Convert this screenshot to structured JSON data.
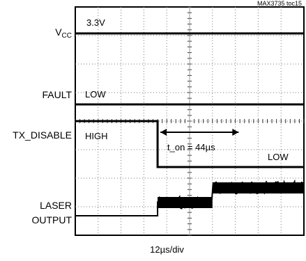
{
  "chart_data": {
    "type": "line",
    "figure_id": "MAX3735 toc15",
    "xlabel": "12µs/div",
    "grid": true,
    "traces": [
      {
        "label": "V",
        "label_sub": "CC",
        "level_text": "3.3V"
      },
      {
        "label": "FAULT",
        "level_text": "LOW"
      },
      {
        "label": "TX_DISABLE",
        "level_text": "HIGH",
        "end_text": "LOW"
      },
      {
        "label_lines": [
          "LASER",
          "OUTPUT"
        ]
      }
    ],
    "annotation": {
      "text": "t_on = 44µs",
      "duration_us": 44
    },
    "time_per_div_us": 12,
    "divisions": {
      "x": 10,
      "y": 8
    },
    "tx_disable_low_at_div": 3.6,
    "laser_step_div": 3.6,
    "laser_second_step_div": 6.0
  }
}
